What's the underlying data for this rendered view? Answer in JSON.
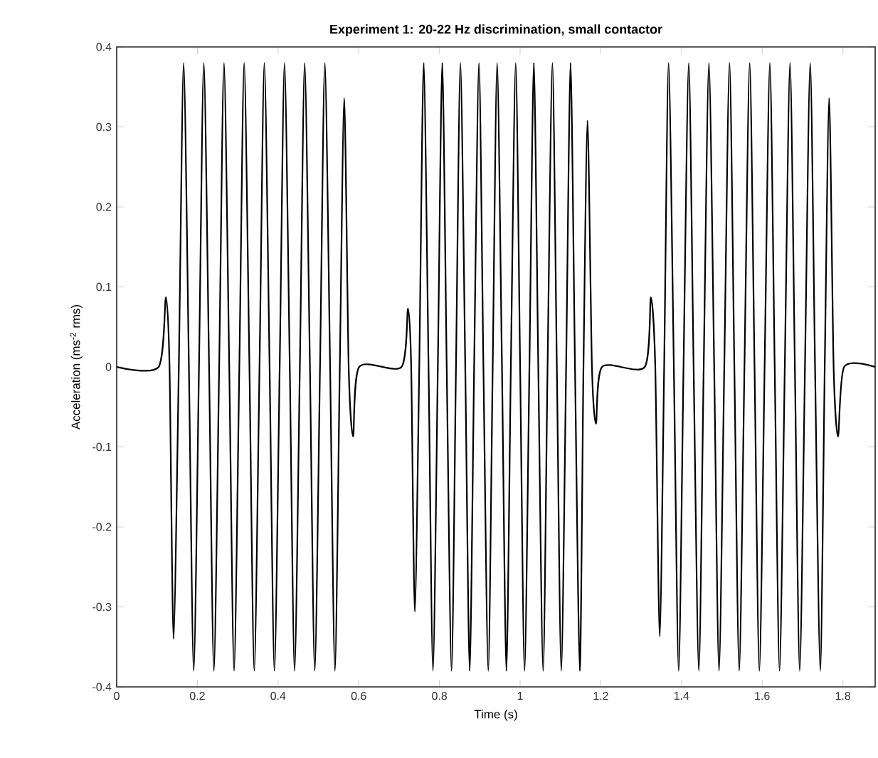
{
  "chart_data": {
    "type": "line",
    "title": "Experiment 1: 20-22 Hz discrimination, small contactor",
    "xlabel": "Time (s)",
    "ylabel": "Acceleration (ms$^{-2}$ rms)",
    "xlim": [
      0,
      1.88
    ],
    "ylim": [
      -0.4,
      0.4
    ],
    "xticks": [
      0,
      0.2,
      0.4,
      0.6,
      0.8,
      1,
      1.2,
      1.4,
      1.6,
      1.8
    ],
    "yticks": [
      -0.4,
      -0.3,
      -0.2,
      -0.1,
      0,
      0.1,
      0.2,
      0.3,
      0.4
    ],
    "marker": "none",
    "line_style": "solid",
    "series": [
      {
        "color": "#000000",
        "x": [
          0,
          0.104,
          0.122,
          0.131,
          0.141,
          0.154,
          0.166,
          0.179,
          0.191,
          0.204,
          0.216,
          0.229,
          0.241,
          0.254,
          0.266,
          0.279,
          0.291,
          0.304,
          0.316,
          0.329,
          0.341,
          0.354,
          0.366,
          0.379,
          0.391,
          0.404,
          0.416,
          0.429,
          0.441,
          0.454,
          0.466,
          0.479,
          0.491,
          0.504,
          0.516,
          0.529,
          0.541,
          0.553,
          0.564,
          0.575,
          0.586,
          0.601,
          0.706,
          0.722,
          0.73,
          0.739,
          0.75,
          0.761,
          0.773,
          0.784,
          0.796,
          0.807,
          0.818,
          0.83,
          0.841,
          0.852,
          0.864,
          0.875,
          0.886,
          0.898,
          0.909,
          0.921,
          0.932,
          0.943,
          0.955,
          0.966,
          0.977,
          0.989,
          1.0,
          1.011,
          1.023,
          1.034,
          1.045,
          1.057,
          1.068,
          1.08,
          1.091,
          1.102,
          1.114,
          1.125,
          1.136,
          1.148,
          1.157,
          1.167,
          1.178,
          1.188,
          1.203,
          1.309,
          1.324,
          1.335,
          1.346,
          1.357,
          1.368,
          1.381,
          1.393,
          1.405,
          1.418,
          1.43,
          1.443,
          1.455,
          1.468,
          1.481,
          1.493,
          1.506,
          1.519,
          1.531,
          1.543,
          1.556,
          1.569,
          1.581,
          1.593,
          1.606,
          1.619,
          1.631,
          1.643,
          1.656,
          1.669,
          1.681,
          1.693,
          1.706,
          1.719,
          1.731,
          1.744,
          1.755,
          1.766,
          1.777,
          1.788,
          1.803,
          1.88
        ],
        "values": [
          0,
          0,
          0.087,
          0,
          -0.34,
          0,
          0.38,
          0,
          -0.38,
          0,
          0.38,
          0,
          -0.38,
          0,
          0.38,
          0,
          -0.38,
          0,
          0.38,
          0,
          -0.38,
          0,
          0.38,
          0,
          -0.38,
          0,
          0.38,
          0,
          -0.38,
          0,
          0.38,
          0,
          -0.38,
          0,
          0.38,
          0,
          -0.38,
          0,
          0.336,
          0,
          -0.087,
          0,
          0,
          0.073,
          0,
          -0.306,
          0,
          0.38,
          0,
          -0.38,
          0,
          0.38,
          0,
          -0.38,
          0,
          0.38,
          0,
          -0.38,
          0,
          0.38,
          0,
          -0.38,
          0,
          0.38,
          0,
          -0.38,
          0,
          0.38,
          0,
          -0.38,
          0,
          0.38,
          0,
          -0.38,
          0,
          0.38,
          0,
          -0.38,
          0,
          0.38,
          0,
          -0.38,
          0,
          0.308,
          0,
          -0.071,
          0,
          0,
          0.087,
          0,
          -0.337,
          0,
          0.38,
          0,
          -0.38,
          0,
          0.38,
          0,
          -0.38,
          0,
          0.38,
          0,
          -0.38,
          0,
          0.38,
          0,
          -0.38,
          0,
          0.38,
          0,
          -0.38,
          0,
          0.38,
          0,
          -0.38,
          0,
          0.38,
          0,
          -0.38,
          0,
          0.38,
          0,
          -0.38,
          0,
          0.336,
          0,
          -0.087,
          0,
          0
        ]
      }
    ]
  }
}
